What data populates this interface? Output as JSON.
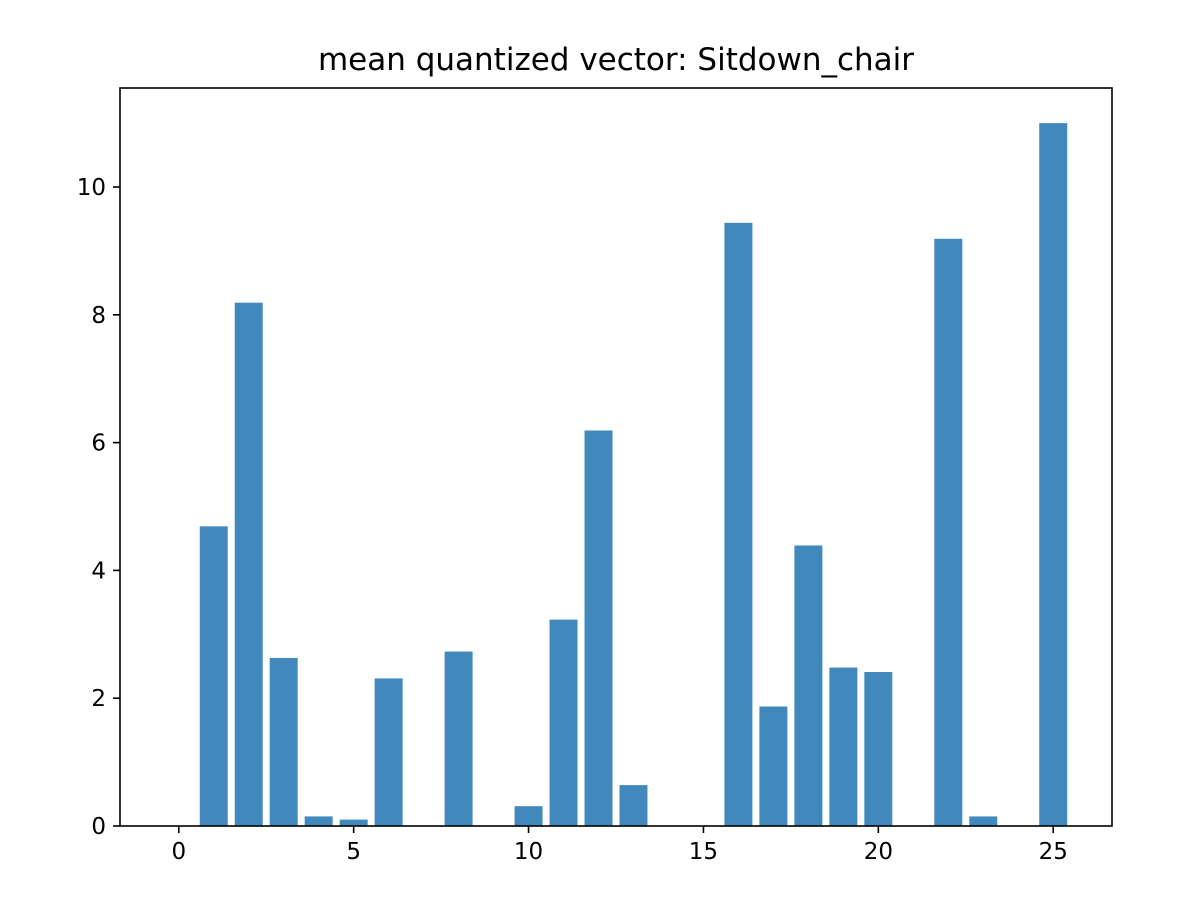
{
  "chart_data": {
    "type": "bar",
    "title": "mean quantized vector: Sitdown_chair",
    "xlabel": "",
    "ylabel": "",
    "x": [
      0,
      1,
      2,
      3,
      4,
      5,
      6,
      7,
      8,
      9,
      10,
      11,
      12,
      13,
      14,
      15,
      16,
      17,
      18,
      19,
      20,
      21,
      22,
      23,
      24,
      25
    ],
    "values": [
      0,
      4.69,
      8.19,
      2.63,
      0.15,
      0.1,
      2.31,
      0,
      2.73,
      0,
      0.31,
      3.23,
      6.19,
      0.64,
      0,
      0,
      9.44,
      1.87,
      4.39,
      2.48,
      2.41,
      0,
      9.19,
      0.15,
      0,
      11.0
    ],
    "xlim": [
      -1.68,
      26.68
    ],
    "ylim": [
      0,
      11.55
    ],
    "xticks": [
      0,
      5,
      10,
      15,
      20,
      25
    ],
    "xtick_labels": [
      "0",
      "5",
      "10",
      "15",
      "20",
      "25"
    ],
    "yticks": [
      0,
      2,
      4,
      6,
      8,
      10
    ],
    "ytick_labels": [
      "0",
      "2",
      "4",
      "6",
      "8",
      "10"
    ],
    "bar_color": "#4189bc",
    "grid": false,
    "legend": "none"
  }
}
